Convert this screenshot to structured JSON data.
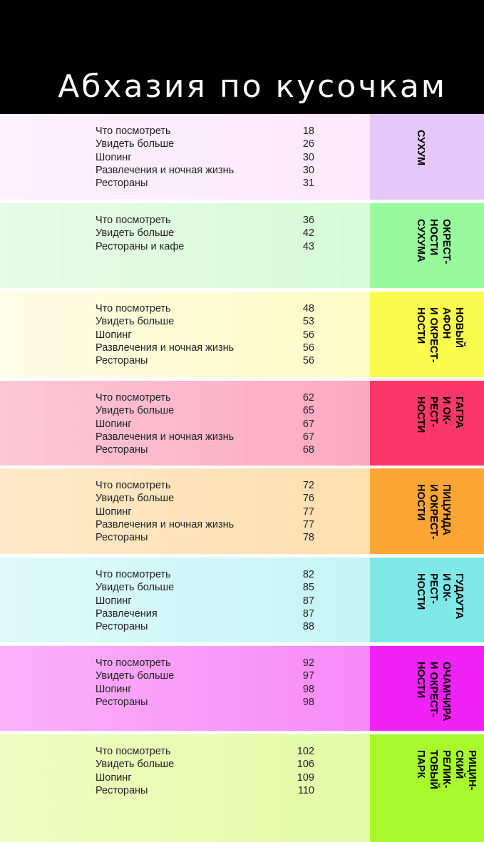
{
  "title": "Абхазия по кусочкам",
  "sections": [
    {
      "tab_label": "СУХУМ",
      "colors": {
        "main_from": "#fbf2fb",
        "main_to": "#fde9fd",
        "tab": "#e5c7fa"
      },
      "entries": [
        {
          "label": "Что посмотреть",
          "page": "18"
        },
        {
          "label": "Увидеть больше",
          "page": "26"
        },
        {
          "label": "Шопинг",
          "page": "30"
        },
        {
          "label": "Развлечения и ночная жизнь",
          "page": "30"
        },
        {
          "label": "Рестораны",
          "page": "31"
        }
      ]
    },
    {
      "tab_label": "ОКРЕСТ-\nНОСТИ\nСУХУМА",
      "colors": {
        "main_from": "#e7fbe6",
        "main_to": "#d6fbd6",
        "tab": "#98fb9d"
      },
      "entries": [
        {
          "label": "Что посмотреть",
          "page": "36"
        },
        {
          "label": "Увидеть больше",
          "page": "42"
        },
        {
          "label": "Рестораны и кафе",
          "page": "43"
        }
      ]
    },
    {
      "tab_label": "НОВЫЙ\nАФОН\nИ ОКРЕСТ-\nНОСТИ",
      "colors": {
        "main_from": "#fdfce5",
        "main_to": "#fdfcc6",
        "tab": "#fbfb4d"
      },
      "entries": [
        {
          "label": "Что посмотреть",
          "page": "48"
        },
        {
          "label": "Увидеть больше",
          "page": "53"
        },
        {
          "label": "Шопинг",
          "page": "56"
        },
        {
          "label": "Развлечения и ночная жизнь",
          "page": "56"
        },
        {
          "label": "Рестораны",
          "page": "56"
        }
      ]
    },
    {
      "tab_label": "ГАГРА\nИ ОК-\nРЕСТ-\nНОСТИ",
      "colors": {
        "main_from": "#fdc7d8",
        "main_to": "#fca9c1",
        "tab": "#fc3769"
      },
      "entries": [
        {
          "label": "Что посмотреть",
          "page": "62"
        },
        {
          "label": "Увидеть больше",
          "page": "65"
        },
        {
          "label": "Шопинг",
          "page": "67"
        },
        {
          "label": "Развлечения и ночная жизнь",
          "page": "67"
        },
        {
          "label": "Рестораны",
          "page": "68"
        }
      ]
    },
    {
      "tab_label": "ПИЦУНДА\nИ ОКРЕСТ-\nНОСТИ",
      "colors": {
        "main_from": "#fde9c9",
        "main_to": "#fedfae",
        "tab": "#fda535"
      },
      "entries": [
        {
          "label": "Что посмотреть",
          "page": "72"
        },
        {
          "label": "Увидеть больше",
          "page": "76"
        },
        {
          "label": "Шопинг",
          "page": "77"
        },
        {
          "label": "Развлечения и ночная жизнь",
          "page": "77"
        },
        {
          "label": "Рестораны",
          "page": "78"
        }
      ]
    },
    {
      "tab_label": "ГУДАУТА\nИ ОК-\nРЕСТ-\nНОСТИ",
      "colors": {
        "main_from": "#def9fa",
        "main_to": "#c6f4f6",
        "tab": "#7ee8e7"
      },
      "entries": [
        {
          "label": "Что посмотреть",
          "page": "82"
        },
        {
          "label": "Увидеть больше",
          "page": "85"
        },
        {
          "label": "Шопинг",
          "page": "87"
        },
        {
          "label": "Развлечения",
          "page": "87"
        },
        {
          "label": "Рестораны",
          "page": "88"
        }
      ]
    },
    {
      "tab_label": "ОЧАМЧИРА\nИ ОКРЕСТ-\nНОСТИ",
      "colors": {
        "main_from": "#fbb1fb",
        "main_to": "#f78af7",
        "tab": "#f122f5"
      },
      "entries": [
        {
          "label": "Что посмотреть",
          "page": "92"
        },
        {
          "label": "Увидеть больше",
          "page": "97"
        },
        {
          "label": "Шопинг",
          "page": "98"
        },
        {
          "label": "Рестораны",
          "page": "98"
        }
      ]
    },
    {
      "tab_label": "РИЦИН-\nСКИЙ\nРЕЛИК-\nТОВЫЙ\nПАРК",
      "colors": {
        "main_from": "#effcc2",
        "main_to": "#e2fba6",
        "tab": "#a7f92c"
      },
      "entries": [
        {
          "label": "Что посмотреть",
          "page": "102"
        },
        {
          "label": "Увидеть больше",
          "page": "106"
        },
        {
          "label": "Шопинг",
          "page": "109"
        },
        {
          "label": "Рестораны",
          "page": "110"
        }
      ]
    }
  ]
}
